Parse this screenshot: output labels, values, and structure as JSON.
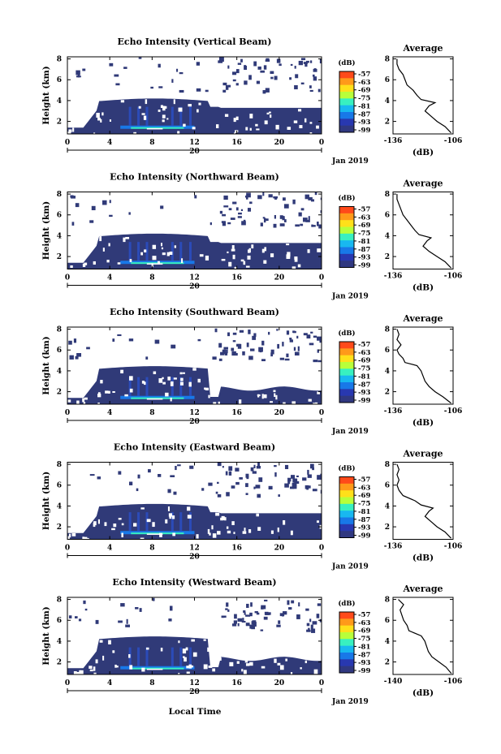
{
  "figure": {
    "xlabel": "Local Time",
    "date_label": "Jan 2019",
    "colorbar_unit": "(dB)",
    "colorbar_ticks": [
      "-57",
      "-63",
      "-69",
      "-75",
      "-81",
      "-87",
      "-93",
      "-99"
    ],
    "colorbar_colors": [
      "#ff4a1a",
      "#ff9a1a",
      "#ffe01a",
      "#b8ff3a",
      "#38f0c0",
      "#18b8f0",
      "#1878e8",
      "#2838b0",
      "#303880"
    ],
    "background_color": "#303a78"
  },
  "chart_data": [
    {
      "type": "heatmap",
      "title": "Echo Intensity (Vertical Beam)",
      "ylabel": "Height (km)",
      "xlim": [
        0,
        24
      ],
      "ylim": [
        0.8,
        8.2
      ],
      "xticks": [
        "0",
        "4",
        "8",
        "12",
        "16",
        "20",
        "0"
      ],
      "xsubtick": "20",
      "yticks": [
        "2",
        "4",
        "6",
        "8"
      ],
      "low_layer_top_km": [
        1.3,
        1.4,
        3.0,
        3.4,
        3.6,
        3.7,
        3.7,
        3.6,
        3.5,
        3.5,
        3.5,
        3.6,
        3.6
      ],
      "profile": {
        "title": "Average",
        "xlabel": "(dB)",
        "xticks": [
          "-136",
          "-106"
        ],
        "xlim": [
          -136,
          -106
        ],
        "yticks": [
          "2",
          "4",
          "6",
          "8"
        ],
        "height_km": [
          0.9,
          1.5,
          2.0,
          2.5,
          3.0,
          3.5,
          3.8,
          4.1,
          4.5,
          5.0,
          5.5,
          6.0,
          6.5,
          7.0,
          7.5,
          8.0
        ],
        "db": [
          -107,
          -110,
          -114,
          -117,
          -120,
          -118,
          -115,
          -122,
          -124,
          -126,
          -129,
          -130,
          -131,
          -133,
          -134,
          -134
        ]
      }
    },
    {
      "type": "heatmap",
      "title": "Echo Intensity (Northward Beam)",
      "ylabel": "Height (km)",
      "xlim": [
        0,
        24
      ],
      "ylim": [
        0.8,
        8.2
      ],
      "xticks": [
        "0",
        "4",
        "8",
        "12",
        "16",
        "20",
        "0"
      ],
      "xsubtick": "20",
      "yticks": [
        "2",
        "4",
        "6",
        "8"
      ],
      "profile": {
        "title": "Average",
        "xlabel": "(dB)",
        "xticks": [
          "-136",
          "-106"
        ],
        "xlim": [
          -136,
          -106
        ],
        "yticks": [
          "2",
          "4",
          "6",
          "8"
        ],
        "height_km": [
          0.9,
          1.5,
          2.0,
          2.5,
          3.0,
          3.5,
          3.8,
          4.1,
          4.5,
          5.0,
          5.5,
          6.0,
          6.5,
          7.0,
          7.5,
          8.0
        ],
        "db": [
          -107,
          -110,
          -114,
          -118,
          -121,
          -119,
          -117,
          -123,
          -125,
          -127,
          -129,
          -131,
          -132,
          -133,
          -134,
          -134
        ]
      }
    },
    {
      "type": "heatmap",
      "title": "Echo Intensity (Southward Beam)",
      "ylabel": "Height (km)",
      "xlim": [
        0,
        24
      ],
      "ylim": [
        0.8,
        8.2
      ],
      "xticks": [
        "0",
        "4",
        "8",
        "12",
        "16",
        "20",
        "0"
      ],
      "xsubtick": "20",
      "yticks": [
        "2",
        "4",
        "6",
        "8"
      ],
      "profile": {
        "title": "Average",
        "xlabel": "(dB)",
        "xticks": [
          "-136",
          "-106"
        ],
        "xlim": [
          -136,
          -106
        ],
        "yticks": [
          "2",
          "4",
          "6",
          "8"
        ],
        "height_km": [
          0.9,
          1.5,
          2.0,
          2.5,
          3.0,
          3.5,
          4.0,
          4.5,
          4.8,
          5.2,
          5.6,
          6.0,
          6.5,
          7.0,
          7.5,
          8.0
        ],
        "db": [
          -107,
          -111,
          -115,
          -118,
          -120,
          -121,
          -122,
          -124,
          -130,
          -131,
          -133,
          -134,
          -132,
          -134,
          -133,
          -134
        ]
      }
    },
    {
      "type": "heatmap",
      "title": "Echo Intensity (Eastward Beam)",
      "ylabel": "Height (km)",
      "xlim": [
        0,
        24
      ],
      "ylim": [
        0.8,
        8.2
      ],
      "xticks": [
        "0",
        "4",
        "8",
        "12",
        "16",
        "20",
        "0"
      ],
      "xsubtick": "20",
      "yticks": [
        "2",
        "4",
        "6",
        "8"
      ],
      "profile": {
        "title": "Average",
        "xlabel": "(dB)",
        "xticks": [
          "-136",
          "-106"
        ],
        "xlim": [
          -136,
          -106
        ],
        "yticks": [
          "2",
          "4",
          "6",
          "8"
        ],
        "height_km": [
          0.9,
          1.5,
          2.0,
          2.5,
          3.0,
          3.5,
          3.8,
          4.1,
          4.5,
          5.0,
          5.5,
          6.0,
          6.5,
          7.0,
          7.5,
          8.0
        ],
        "db": [
          -107,
          -110,
          -114,
          -117,
          -120,
          -118,
          -116,
          -122,
          -125,
          -131,
          -133,
          -134,
          -133,
          -134,
          -133,
          -134
        ]
      }
    },
    {
      "type": "heatmap",
      "title": "Echo Intensity (Westward Beam)",
      "ylabel": "Height (km)",
      "xlim": [
        0,
        24
      ],
      "ylim": [
        0.8,
        8.2
      ],
      "xticks": [
        "0",
        "4",
        "8",
        "12",
        "16",
        "20",
        "0"
      ],
      "xsubtick": "20",
      "yticks": [
        "2",
        "4",
        "6",
        "8"
      ],
      "profile": {
        "title": "Average",
        "xlabel": "(dB)",
        "xticks": [
          "-140",
          "-106"
        ],
        "xlim": [
          -140,
          -106
        ],
        "yticks": [
          "2",
          "4",
          "6",
          "8"
        ],
        "height_km": [
          0.9,
          1.5,
          2.0,
          2.5,
          3.0,
          3.5,
          4.0,
          4.5,
          5.0,
          5.5,
          6.0,
          6.5,
          7.0,
          7.5,
          8.0
        ],
        "db": [
          -107,
          -110,
          -114,
          -118,
          -120,
          -121,
          -122,
          -124,
          -131,
          -132,
          -134,
          -135,
          -136,
          -134,
          -137
        ]
      }
    }
  ]
}
